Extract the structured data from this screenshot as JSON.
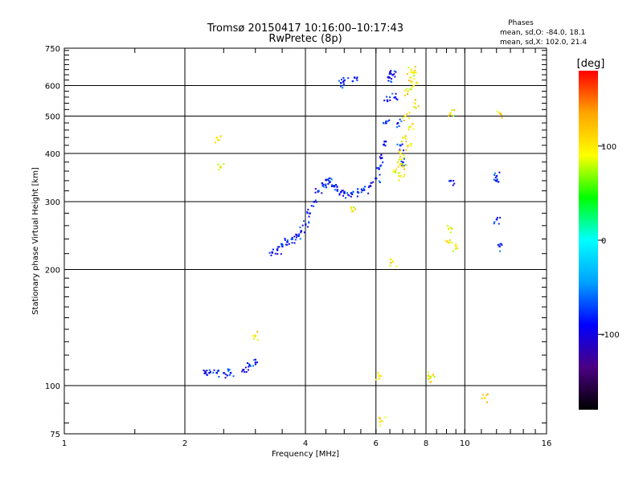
{
  "header": {
    "title": "Tromsø 20150417 10:16:00–10:17:43",
    "subtitle": "RwPretec (8p)",
    "phase_title": "Phases",
    "phase_line1": "mean, sd,O: -84.0, 18.1",
    "phase_line2": "mean, sd,X: 102.0, 21.4"
  },
  "chart_data": {
    "type": "scatter",
    "xlabel": "Frequency [MHz]",
    "ylabel": "Stationary phase Virtual Height [km]",
    "x_scale": "log",
    "y_scale": "log",
    "xlim": [
      1,
      16
    ],
    "ylim": [
      75,
      750
    ],
    "x_ticks": [
      1,
      2,
      4,
      6,
      8,
      10,
      16
    ],
    "y_ticks": [
      75,
      100,
      200,
      300,
      400,
      500,
      600,
      750
    ],
    "grid": true,
    "colorbar": {
      "label": "[deg]",
      "range": [
        -180,
        180
      ],
      "ticks": [
        -100,
        0,
        100
      ],
      "colors": [
        "#000000",
        "#4b0082",
        "#0000ff",
        "#00a0ff",
        "#00ffff",
        "#00ff00",
        "#ffff00",
        "#ffa500",
        "#ff0000"
      ]
    },
    "series": [
      {
        "trace": "O-mode",
        "mean_phase": -84.0,
        "points": [
          [
            3.3,
            222
          ],
          [
            3.4,
            226
          ],
          [
            3.5,
            230
          ],
          [
            3.6,
            236
          ],
          [
            3.7,
            240
          ],
          [
            3.8,
            246
          ],
          [
            3.9,
            252
          ],
          [
            4.0,
            262
          ],
          [
            4.1,
            280
          ],
          [
            4.2,
            300
          ],
          [
            4.3,
            320
          ],
          [
            4.4,
            335
          ],
          [
            4.5,
            342
          ],
          [
            4.6,
            338
          ],
          [
            4.7,
            330
          ],
          [
            4.8,
            322
          ],
          [
            4.9,
            318
          ],
          [
            5.0,
            316
          ],
          [
            5.2,
            316
          ],
          [
            5.4,
            318
          ],
          [
            5.6,
            322
          ],
          [
            5.8,
            330
          ],
          [
            6.0,
            345
          ],
          [
            6.1,
            365
          ],
          [
            6.2,
            390
          ],
          [
            6.3,
            430
          ],
          [
            6.35,
            480
          ],
          [
            6.4,
            550
          ],
          [
            6.45,
            630
          ],
          [
            6.5,
            650
          ],
          [
            6.6,
            640
          ],
          [
            6.7,
            560
          ],
          [
            6.8,
            480
          ],
          [
            6.9,
            420
          ],
          [
            7.0,
            380
          ],
          [
            2.25,
            108
          ],
          [
            2.3,
            108
          ],
          [
            2.4,
            108
          ],
          [
            2.5,
            108
          ],
          [
            2.6,
            108
          ],
          [
            2.8,
            110
          ],
          [
            2.9,
            113
          ],
          [
            3.0,
            115
          ],
          [
            4.9,
            610
          ],
          [
            5.0,
            620
          ],
          [
            5.3,
            630
          ],
          [
            9.2,
            340
          ],
          [
            12.0,
            350
          ],
          [
            12.0,
            340
          ],
          [
            12.2,
            230
          ],
          [
            12.0,
            270
          ]
        ]
      },
      {
        "trace": "X-mode",
        "mean_phase": 102.0,
        "points": [
          [
            6.7,
            360
          ],
          [
            6.8,
            380
          ],
          [
            6.9,
            400
          ],
          [
            7.0,
            440
          ],
          [
            7.1,
            500
          ],
          [
            7.2,
            580
          ],
          [
            7.3,
            630
          ],
          [
            7.35,
            660
          ],
          [
            7.4,
            650
          ],
          [
            7.45,
            600
          ],
          [
            7.5,
            540
          ],
          [
            7.3,
            470
          ],
          [
            7.2,
            420
          ],
          [
            7.0,
            370
          ],
          [
            6.9,
            350
          ],
          [
            2.4,
            440
          ],
          [
            2.45,
            370
          ],
          [
            3.0,
            135
          ],
          [
            5.2,
            290
          ],
          [
            9.2,
            510
          ],
          [
            12.2,
            510
          ],
          [
            9.1,
            255
          ],
          [
            9.1,
            235
          ],
          [
            9.5,
            230
          ],
          [
            6.6,
            210
          ],
          [
            11.2,
            93
          ],
          [
            6.2,
            81
          ],
          [
            6.1,
            106
          ],
          [
            8.1,
            106
          ],
          [
            8.2,
            105
          ]
        ]
      }
    ]
  }
}
